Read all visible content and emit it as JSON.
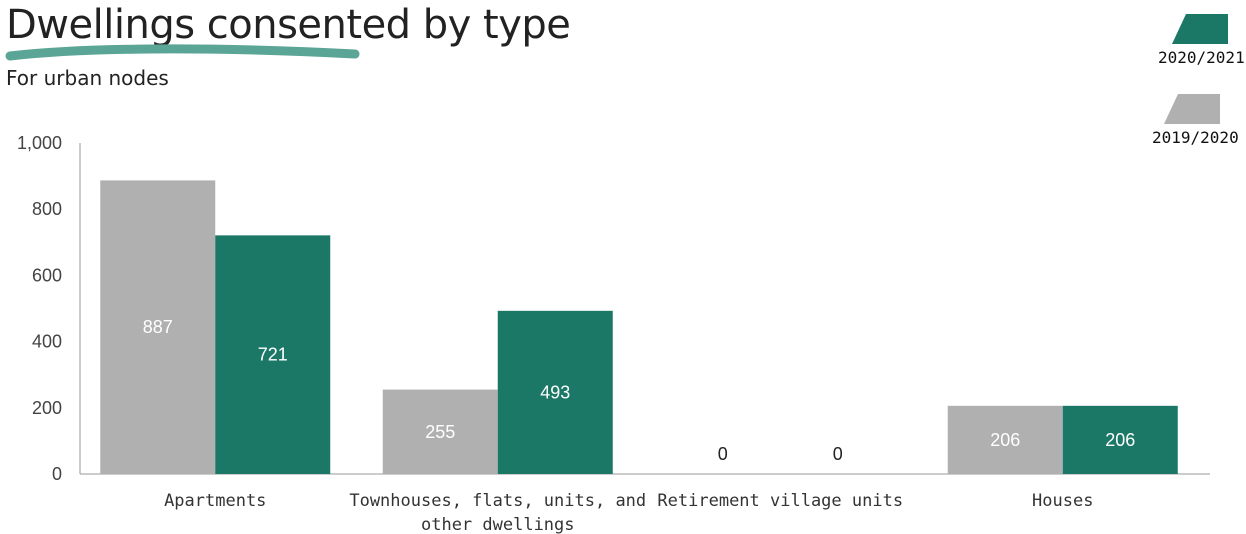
{
  "chart_data": {
    "type": "bar",
    "title": "Dwellings consented by type",
    "subtitle": "For urban nodes",
    "categories": [
      [
        "Apartments"
      ],
      [
        "Townhouses, flats, units, and",
        "other dwellings"
      ],
      [
        "Retirement village units"
      ],
      [
        "Houses"
      ]
    ],
    "series": [
      {
        "name": "2019/2020",
        "color": "#b0b0b0",
        "label_color": "#ffffff",
        "values": [
          887,
          255,
          0,
          206
        ]
      },
      {
        "name": "2020/2021",
        "color": "#1b7866",
        "label_color": "#ffffff",
        "values": [
          721,
          493,
          0,
          206
        ]
      }
    ],
    "ylim": [
      0,
      1000
    ],
    "yticks": [
      0,
      200,
      400,
      600,
      800,
      1000
    ],
    "ytick_labels": [
      "0",
      "200",
      "400",
      "600",
      "800",
      "1,000"
    ],
    "legend": {
      "placement": "top-right",
      "order": [
        "2020/2021",
        "2019/2020"
      ]
    },
    "grid": false,
    "accent_color": "#5aa596"
  }
}
